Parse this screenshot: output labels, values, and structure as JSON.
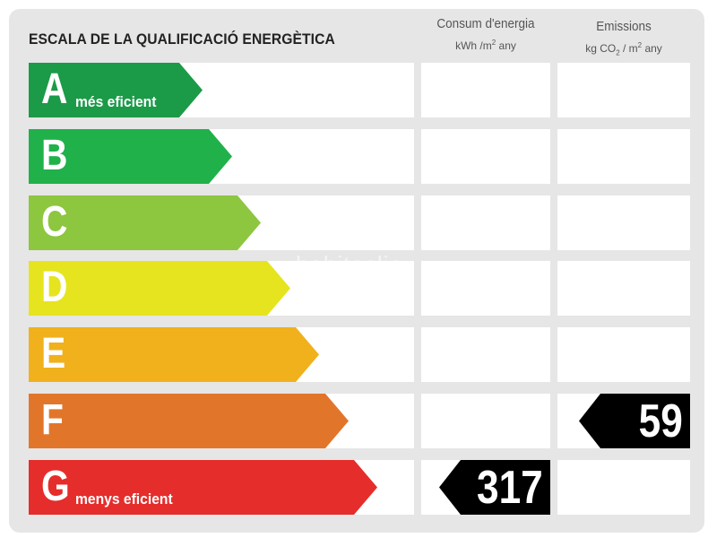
{
  "header": {
    "title": "ESCALA DE LA QUALIFICACIÓ ENERGÈTICA",
    "consum": {
      "line1": "Consum d'energia",
      "unit_base": "kWh /m",
      "unit_sup": "2",
      "unit_tail": " any"
    },
    "emissions": {
      "line1": "Emissions",
      "unit_base": "kg CO",
      "unit_sub": "2",
      "unit_mid": " / m",
      "unit_sup": "2",
      "unit_tail": "  any"
    }
  },
  "ratings": [
    {
      "letter": "A",
      "label": "més eficient",
      "color": "#1b9a48"
    },
    {
      "letter": "B",
      "label": "",
      "color": "#20b14b"
    },
    {
      "letter": "C",
      "label": "",
      "color": "#8dc63f"
    },
    {
      "letter": "D",
      "label": "",
      "color": "#e6e41f"
    },
    {
      "letter": "E",
      "label": "",
      "color": "#f0b11c"
    },
    {
      "letter": "F",
      "label": "",
      "color": "#e1762a"
    },
    {
      "letter": "G",
      "label": "menys eficient",
      "color": "#e52d2b"
    }
  ],
  "values": {
    "consum": {
      "rating": "G",
      "value": "317"
    },
    "emissions": {
      "rating": "F",
      "value": "59"
    }
  },
  "watermark": "habitaclia"
}
